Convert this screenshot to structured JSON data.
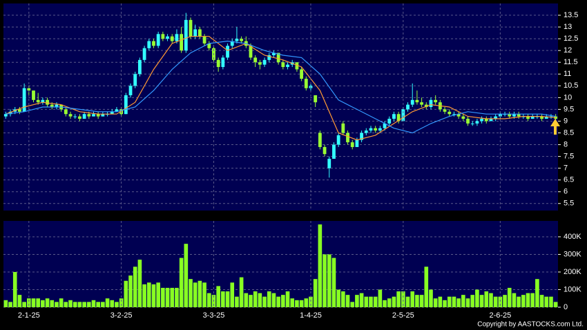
{
  "chart_data": [
    {
      "type": "candlestick",
      "up_color": "#33ffff",
      "down_color": "#99ff33",
      "ylim": [
        5.2,
        14.0
      ],
      "yticks": [
        5.5,
        6,
        6.5,
        7,
        7.5,
        8,
        8.5,
        9,
        9.5,
        10,
        10.5,
        11,
        11.5,
        12,
        12.5,
        13,
        13.5
      ],
      "grid": true,
      "ohlc": [
        [
          9.2,
          9.4,
          9.1,
          9.3
        ],
        [
          9.3,
          9.5,
          9.2,
          9.4
        ],
        [
          9.4,
          9.6,
          9.3,
          9.5
        ],
        [
          9.5,
          9.6,
          9.3,
          9.4
        ],
        [
          9.4,
          10.6,
          9.4,
          10.4
        ],
        [
          10.4,
          10.5,
          10.1,
          10.3
        ],
        [
          10.3,
          10.3,
          9.8,
          9.9
        ],
        [
          9.9,
          10.2,
          9.7,
          9.8
        ],
        [
          9.8,
          10.0,
          9.7,
          9.9
        ],
        [
          9.9,
          10.0,
          9.6,
          9.7
        ],
        [
          9.7,
          9.8,
          9.5,
          9.6
        ],
        [
          9.6,
          9.8,
          9.5,
          9.7
        ],
        [
          9.7,
          9.7,
          9.4,
          9.5
        ],
        [
          9.5,
          9.6,
          9.2,
          9.3
        ],
        [
          9.3,
          9.4,
          9.1,
          9.2
        ],
        [
          9.2,
          9.3,
          9.1,
          9.2
        ],
        [
          9.2,
          9.3,
          9.0,
          9.1
        ],
        [
          9.1,
          9.4,
          9.1,
          9.3
        ],
        [
          9.3,
          9.4,
          9.1,
          9.2
        ],
        [
          9.2,
          9.4,
          9.2,
          9.3
        ],
        [
          9.3,
          9.4,
          9.1,
          9.2
        ],
        [
          9.2,
          9.4,
          9.2,
          9.3
        ],
        [
          9.3,
          9.4,
          9.2,
          9.3
        ],
        [
          9.3,
          9.5,
          9.3,
          9.4
        ],
        [
          9.4,
          9.6,
          9.4,
          9.5
        ],
        [
          9.5,
          9.6,
          9.2,
          9.3
        ],
        [
          9.3,
          10.2,
          9.3,
          10.1
        ],
        [
          10.1,
          10.6,
          10.0,
          10.5
        ],
        [
          10.5,
          11.1,
          10.4,
          11.0
        ],
        [
          11.0,
          11.7,
          10.9,
          11.6
        ],
        [
          11.6,
          12.2,
          11.5,
          12.1
        ],
        [
          12.1,
          12.5,
          12.0,
          12.4
        ],
        [
          12.4,
          12.5,
          12.1,
          12.2
        ],
        [
          12.2,
          12.8,
          12.1,
          12.7
        ],
        [
          12.7,
          12.8,
          12.4,
          12.5
        ],
        [
          12.5,
          12.7,
          12.4,
          12.6
        ],
        [
          12.6,
          12.7,
          12.3,
          12.4
        ],
        [
          12.4,
          12.9,
          12.3,
          12.7
        ],
        [
          12.7,
          13.0,
          11.9,
          12.0
        ],
        [
          12.0,
          13.6,
          11.9,
          13.3
        ],
        [
          13.3,
          13.4,
          12.5,
          12.6
        ],
        [
          12.6,
          13.1,
          12.5,
          12.9
        ],
        [
          12.9,
          13.0,
          12.5,
          12.6
        ],
        [
          12.6,
          12.7,
          12.2,
          12.3
        ],
        [
          12.3,
          12.4,
          12.0,
          12.1
        ],
        [
          12.1,
          12.2,
          11.5,
          11.6
        ],
        [
          11.6,
          11.7,
          11.1,
          11.3
        ],
        [
          11.3,
          11.8,
          11.2,
          11.7
        ],
        [
          11.7,
          12.3,
          11.6,
          12.2
        ],
        [
          12.2,
          12.5,
          12.1,
          12.4
        ],
        [
          12.4,
          13.0,
          12.3,
          12.5
        ],
        [
          12.5,
          12.6,
          12.3,
          12.4
        ],
        [
          12.4,
          12.6,
          12.1,
          12.2
        ],
        [
          12.2,
          12.3,
          11.6,
          11.7
        ],
        [
          11.7,
          11.8,
          11.3,
          11.5
        ],
        [
          11.5,
          11.6,
          11.2,
          11.4
        ],
        [
          11.4,
          11.7,
          11.3,
          11.6
        ],
        [
          11.6,
          11.9,
          11.5,
          11.8
        ],
        [
          11.8,
          12.0,
          11.7,
          11.9
        ],
        [
          11.9,
          11.9,
          11.4,
          11.5
        ],
        [
          11.5,
          11.6,
          11.2,
          11.3
        ],
        [
          11.3,
          11.5,
          11.2,
          11.4
        ],
        [
          11.4,
          11.6,
          11.3,
          11.5
        ],
        [
          11.5,
          11.5,
          11.1,
          11.2
        ],
        [
          11.2,
          11.3,
          10.7,
          10.8
        ],
        [
          10.8,
          10.9,
          10.3,
          10.4
        ],
        [
          10.4,
          10.6,
          10.3,
          10.5
        ],
        [
          10.1,
          10.1,
          9.6,
          9.8
        ],
        [
          8.5,
          8.6,
          7.8,
          7.9
        ],
        [
          7.9,
          8.0,
          7.5,
          7.6
        ],
        [
          7.0,
          7.5,
          6.6,
          7.4
        ],
        [
          7.4,
          8.1,
          7.4,
          8.0
        ],
        [
          8.0,
          8.5,
          7.9,
          8.4
        ],
        [
          8.9,
          9.0,
          8.4,
          8.5
        ],
        [
          8.5,
          8.6,
          8.0,
          8.1
        ],
        [
          8.1,
          8.2,
          7.8,
          7.9
        ],
        [
          7.9,
          8.3,
          7.9,
          8.2
        ],
        [
          8.2,
          8.6,
          8.1,
          8.5
        ],
        [
          8.5,
          8.7,
          8.4,
          8.6
        ],
        [
          8.6,
          8.8,
          8.5,
          8.7
        ],
        [
          8.7,
          8.8,
          8.5,
          8.6
        ],
        [
          8.6,
          8.8,
          8.5,
          8.7
        ],
        [
          8.7,
          9.0,
          8.6,
          8.9
        ],
        [
          8.9,
          9.2,
          8.8,
          9.1
        ],
        [
          9.1,
          9.4,
          9.0,
          9.3
        ],
        [
          9.3,
          9.4,
          8.9,
          9.0
        ],
        [
          9.0,
          9.6,
          9.0,
          9.5
        ],
        [
          9.5,
          9.8,
          9.4,
          9.7
        ],
        [
          9.7,
          10.6,
          9.6,
          9.9
        ],
        [
          9.9,
          10.3,
          9.7,
          9.8
        ],
        [
          9.8,
          10.0,
          9.6,
          9.7
        ],
        [
          9.7,
          9.8,
          9.5,
          9.6
        ],
        [
          9.6,
          10.0,
          9.5,
          9.9
        ],
        [
          9.9,
          10.1,
          9.7,
          9.8
        ],
        [
          9.8,
          9.9,
          9.4,
          9.5
        ],
        [
          9.5,
          9.6,
          9.3,
          9.4
        ],
        [
          9.4,
          9.5,
          9.2,
          9.3
        ],
        [
          9.3,
          9.4,
          9.2,
          9.3
        ],
        [
          9.3,
          9.4,
          9.1,
          9.2
        ],
        [
          9.2,
          9.3,
          9.0,
          9.1
        ],
        [
          9.1,
          9.2,
          8.8,
          8.9
        ],
        [
          8.9,
          9.0,
          8.8,
          8.9
        ],
        [
          8.9,
          9.1,
          8.8,
          9.0
        ],
        [
          9.0,
          9.2,
          8.9,
          9.1
        ],
        [
          9.1,
          9.2,
          8.9,
          9.0
        ],
        [
          9.0,
          9.2,
          9.0,
          9.1
        ],
        [
          9.1,
          9.3,
          9.0,
          9.2
        ],
        [
          9.2,
          9.4,
          9.1,
          9.3
        ],
        [
          9.3,
          9.4,
          9.2,
          9.3
        ],
        [
          9.3,
          9.4,
          9.1,
          9.2
        ],
        [
          9.2,
          9.4,
          9.1,
          9.3
        ],
        [
          9.3,
          9.4,
          9.1,
          9.2
        ],
        [
          9.2,
          9.3,
          9.1,
          9.2
        ],
        [
          9.2,
          9.3,
          9.0,
          9.1
        ],
        [
          9.1,
          9.3,
          9.1,
          9.2
        ],
        [
          9.2,
          9.3,
          9.1,
          9.2
        ],
        [
          9.2,
          9.3,
          9.0,
          9.1
        ],
        [
          9.1,
          9.3,
          9.1,
          9.2
        ],
        [
          9.2,
          9.3,
          9.1,
          9.2
        ],
        [
          9.2,
          9.3,
          9.0,
          9.1
        ]
      ],
      "series": [
        {
          "color": "#ff9933",
          "x": [
            0,
            4,
            8,
            12,
            16,
            20,
            24,
            28,
            32,
            36,
            40,
            44,
            48,
            52,
            56,
            60,
            64,
            68,
            72,
            76,
            80,
            84,
            88,
            92,
            96,
            100,
            104,
            108,
            112,
            116,
            119
          ],
          "values": [
            9.3,
            9.6,
            9.8,
            9.7,
            9.4,
            9.3,
            9.3,
            9.8,
            11.2,
            12.3,
            12.6,
            12.6,
            12.0,
            12.3,
            11.8,
            11.6,
            11.3,
            10.3,
            8.5,
            8.2,
            8.4,
            8.9,
            9.4,
            9.7,
            9.6,
            9.2,
            9.1,
            9.1,
            9.2,
            9.2,
            9.15
          ]
        },
        {
          "color": "#3399ff",
          "x": [
            0,
            4,
            8,
            12,
            16,
            20,
            24,
            28,
            32,
            36,
            40,
            44,
            48,
            52,
            56,
            60,
            64,
            68,
            72,
            76,
            80,
            84,
            88,
            92,
            96,
            100,
            104,
            108,
            112,
            116,
            119
          ],
          "values": [
            9.3,
            9.4,
            9.6,
            9.6,
            9.5,
            9.4,
            9.4,
            9.6,
            10.3,
            11.2,
            11.9,
            12.3,
            12.4,
            12.3,
            12.0,
            11.8,
            11.7,
            11.0,
            9.9,
            9.5,
            9.1,
            8.7,
            8.5,
            8.9,
            9.2,
            9.4,
            9.3,
            9.3,
            9.3,
            9.3,
            9.2
          ]
        }
      ]
    },
    {
      "type": "bar",
      "color": "#88ff22",
      "ylim": [
        0,
        490000
      ],
      "yticks": [
        0,
        {
          "value": 100000,
          "label": "100K"
        },
        {
          "value": 200000,
          "label": "200K"
        },
        {
          "value": 300000,
          "label": "300K"
        },
        {
          "value": 400000,
          "label": "400K"
        }
      ],
      "grid": true,
      "categories": [
        null,
        null,
        null,
        null,
        null,
        "2-1-25",
        null,
        null,
        null,
        null,
        null,
        null,
        null,
        null,
        null,
        null,
        null,
        null,
        null,
        null,
        null,
        null,
        null,
        null,
        null,
        "3-2-25",
        null,
        null,
        null,
        null,
        null,
        null,
        null,
        null,
        null,
        null,
        null,
        null,
        null,
        null,
        null,
        null,
        null,
        null,
        null,
        "3-3-25",
        null,
        null,
        null,
        null,
        null,
        null,
        null,
        null,
        null,
        null,
        null,
        null,
        null,
        null,
        null,
        null,
        null,
        null,
        null,
        null,
        "1-4-25",
        null,
        null,
        null,
        null,
        null,
        null,
        null,
        null,
        null,
        null,
        null,
        null,
        null,
        null,
        null,
        null,
        null,
        null,
        null,
        "2-5-25",
        null,
        null,
        null,
        null,
        null,
        null,
        null,
        null,
        null,
        null,
        null,
        null,
        null,
        null,
        null,
        null,
        null,
        null,
        null,
        null,
        "2-6-25",
        null,
        null,
        null,
        null,
        null,
        null,
        null,
        null,
        null,
        null,
        null,
        null
      ],
      "values": [
        40000,
        30000,
        200000,
        70000,
        30000,
        50000,
        50000,
        50000,
        40000,
        50000,
        40000,
        30000,
        50000,
        30000,
        40000,
        30000,
        30000,
        30000,
        30000,
        40000,
        30000,
        30000,
        50000,
        40000,
        30000,
        50000,
        150000,
        180000,
        230000,
        270000,
        130000,
        140000,
        130000,
        140000,
        110000,
        110000,
        110000,
        110000,
        280000,
        360000,
        160000,
        140000,
        150000,
        140000,
        80000,
        70000,
        120000,
        90000,
        90000,
        140000,
        60000,
        170000,
        80000,
        70000,
        90000,
        80000,
        60000,
        90000,
        80000,
        60000,
        70000,
        90000,
        50000,
        40000,
        40000,
        50000,
        60000,
        160000,
        470000,
        300000,
        300000,
        280000,
        100000,
        90000,
        70000,
        30000,
        70000,
        80000,
        60000,
        60000,
        60000,
        100000,
        40000,
        50000,
        60000,
        90000,
        90000,
        60000,
        90000,
        70000,
        70000,
        230000,
        100000,
        50000,
        60000,
        40000,
        60000,
        60000,
        50000,
        70000,
        50000,
        70000,
        100000,
        70000,
        90000,
        80000,
        60000,
        60000,
        70000,
        110000,
        80000,
        60000,
        70000,
        80000,
        80000,
        160000,
        70000,
        60000,
        60000,
        30000
      ]
    }
  ],
  "footer": {
    "copyright": "Copyright by AASTOCKS.com Ltd."
  }
}
